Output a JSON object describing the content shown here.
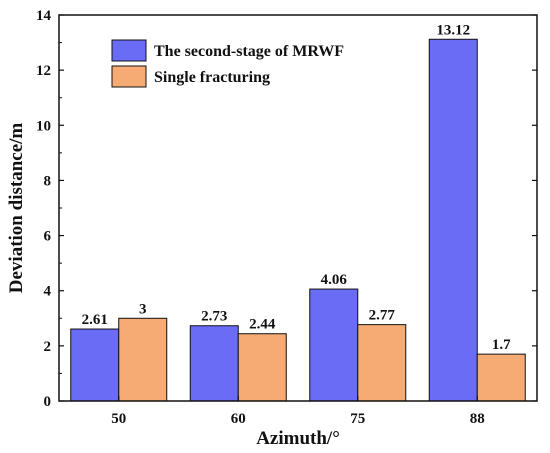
{
  "chart_data": {
    "type": "bar",
    "xlabel": "Azimuth/°",
    "ylabel": "Deviation distance/m",
    "categories": [
      "50",
      "60",
      "75",
      "88"
    ],
    "ylim": [
      0,
      14
    ],
    "yticks": [
      0,
      2,
      4,
      6,
      8,
      10,
      12,
      14
    ],
    "series": [
      {
        "name": "The second-stage of MRWF",
        "color": "#6a6cf6",
        "values": [
          2.61,
          2.73,
          4.06,
          13.12
        ],
        "labels": [
          "2.61",
          "2.73",
          "4.06",
          "13.12"
        ]
      },
      {
        "name": "Single fracturing",
        "color": "#f5ab73",
        "values": [
          3,
          2.44,
          2.77,
          1.7
        ],
        "labels": [
          "3",
          "2.44",
          "2.77",
          "1.7"
        ]
      }
    ],
    "legend": "top-left",
    "grid": false
  }
}
